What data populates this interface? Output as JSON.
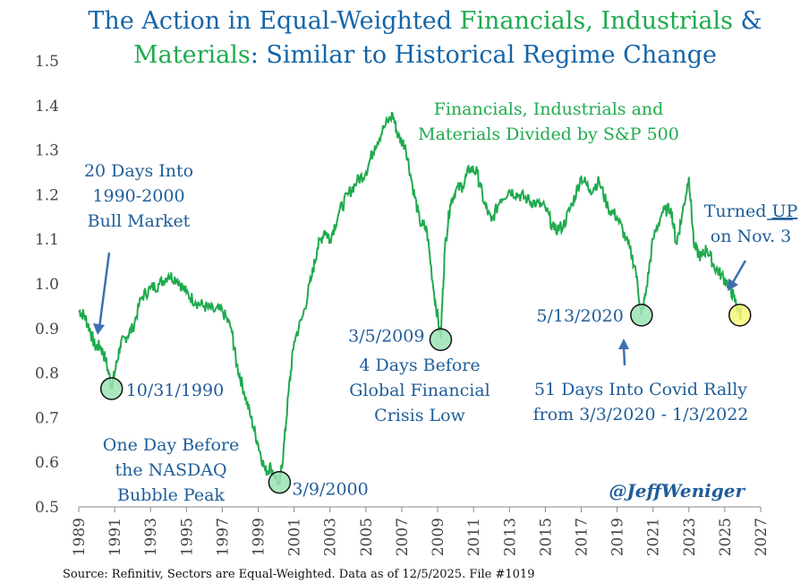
{
  "chart_data": {
    "type": "line",
    "title_parts": [
      {
        "text": "The Action in Equal-Weighted ",
        "color": "blue"
      },
      {
        "text": "Financials, Industrials",
        "color": "green"
      },
      {
        "text": " &",
        "color": "blue"
      }
    ],
    "title_parts_line2": [
      {
        "text": "Materials",
        "color": "green"
      },
      {
        "text": ": Similar to Historical Regime Change",
        "color": "blue"
      }
    ],
    "series_label": [
      "Financials, Industrials and",
      "Materials Divided by S&P 500"
    ],
    "ylim": [
      0.5,
      1.5
    ],
    "yticks": [
      "0.5",
      "0.6",
      "0.7",
      "0.8",
      "0.9",
      "1.0",
      "1.1",
      "1.2",
      "1.3",
      "1.4",
      "1.5"
    ],
    "xlim": [
      1989,
      2027
    ],
    "xticks": [
      "1989",
      "1991",
      "1993",
      "1995",
      "1997",
      "1999",
      "2001",
      "2003",
      "2005",
      "2007",
      "2009",
      "2011",
      "2013",
      "2015",
      "2017",
      "2019",
      "2021",
      "2023",
      "2025",
      "2027"
    ],
    "series": [
      {
        "name": "Financials, Industrials and Materials Divided by S&P 500",
        "color": "#1faa4e",
        "points": [
          [
            1989.0,
            0.94
          ],
          [
            1989.3,
            0.93
          ],
          [
            1989.6,
            0.9
          ],
          [
            1989.9,
            0.86
          ],
          [
            1990.2,
            0.86
          ],
          [
            1990.5,
            0.83
          ],
          [
            1990.83,
            0.77
          ],
          [
            1991.0,
            0.8
          ],
          [
            1991.3,
            0.86
          ],
          [
            1991.6,
            0.88
          ],
          [
            1992.0,
            0.9
          ],
          [
            1992.5,
            0.97
          ],
          [
            1993.0,
            0.99
          ],
          [
            1993.5,
            1.0
          ],
          [
            1994.0,
            1.02
          ],
          [
            1994.5,
            1.01
          ],
          [
            1995.0,
            0.98
          ],
          [
            1995.5,
            0.96
          ],
          [
            1996.0,
            0.95
          ],
          [
            1996.5,
            0.94
          ],
          [
            1997.0,
            0.94
          ],
          [
            1997.5,
            0.9
          ],
          [
            1997.8,
            0.82
          ],
          [
            1998.2,
            0.76
          ],
          [
            1998.6,
            0.7
          ],
          [
            1999.0,
            0.64
          ],
          [
            1999.4,
            0.58
          ],
          [
            1999.7,
            0.59
          ],
          [
            2000.19,
            0.55
          ],
          [
            2000.4,
            0.62
          ],
          [
            2000.7,
            0.76
          ],
          [
            2001.0,
            0.87
          ],
          [
            2001.5,
            0.93
          ],
          [
            2002.0,
            1.02
          ],
          [
            2002.3,
            1.08
          ],
          [
            2002.7,
            1.12
          ],
          [
            2003.0,
            1.1
          ],
          [
            2003.5,
            1.16
          ],
          [
            2004.0,
            1.2
          ],
          [
            2004.5,
            1.23
          ],
          [
            2005.0,
            1.25
          ],
          [
            2005.5,
            1.31
          ],
          [
            2006.0,
            1.35
          ],
          [
            2006.5,
            1.38
          ],
          [
            2006.8,
            1.33
          ],
          [
            2007.2,
            1.31
          ],
          [
            2007.6,
            1.22
          ],
          [
            2008.0,
            1.14
          ],
          [
            2008.4,
            1.12
          ],
          [
            2008.8,
            0.98
          ],
          [
            2009.17,
            0.88
          ],
          [
            2009.4,
            1.08
          ],
          [
            2009.7,
            1.18
          ],
          [
            2010.0,
            1.21
          ],
          [
            2010.4,
            1.22
          ],
          [
            2010.8,
            1.26
          ],
          [
            2011.2,
            1.25
          ],
          [
            2011.6,
            1.18
          ],
          [
            2012.0,
            1.14
          ],
          [
            2012.5,
            1.19
          ],
          [
            2013.0,
            1.21
          ],
          [
            2013.5,
            1.2
          ],
          [
            2014.0,
            1.19
          ],
          [
            2014.5,
            1.18
          ],
          [
            2015.0,
            1.17
          ],
          [
            2015.5,
            1.12
          ],
          [
            2016.0,
            1.13
          ],
          [
            2016.5,
            1.18
          ],
          [
            2017.0,
            1.24
          ],
          [
            2017.5,
            1.21
          ],
          [
            2018.0,
            1.23
          ],
          [
            2018.5,
            1.17
          ],
          [
            2019.0,
            1.15
          ],
          [
            2019.5,
            1.1
          ],
          [
            2020.0,
            1.04
          ],
          [
            2020.36,
            0.93
          ],
          [
            2020.6,
            0.98
          ],
          [
            2021.0,
            1.1
          ],
          [
            2021.5,
            1.16
          ],
          [
            2022.0,
            1.17
          ],
          [
            2022.3,
            1.09
          ],
          [
            2022.6,
            1.15
          ],
          [
            2023.0,
            1.24
          ],
          [
            2023.3,
            1.08
          ],
          [
            2023.7,
            1.06
          ],
          [
            2024.0,
            1.08
          ],
          [
            2024.4,
            1.04
          ],
          [
            2024.8,
            1.02
          ],
          [
            2025.2,
            1.0
          ],
          [
            2025.5,
            0.97
          ],
          [
            2025.84,
            0.93
          ],
          [
            2025.93,
            0.94
          ]
        ]
      }
    ],
    "markers": [
      {
        "x": 1990.83,
        "y": 0.765,
        "fill": "#9be3b4",
        "label": "10/31/1990"
      },
      {
        "x": 2000.19,
        "y": 0.555,
        "fill": "#9be3b4",
        "label": "3/9/2000"
      },
      {
        "x": 2009.17,
        "y": 0.875,
        "fill": "#9be3b4",
        "label": "3/5/2009"
      },
      {
        "x": 2020.36,
        "y": 0.93,
        "fill": "#9be3b4",
        "label": "5/13/2020"
      },
      {
        "x": 2025.84,
        "y": 0.93,
        "fill": "#f7f77a",
        "label": ""
      }
    ],
    "annotations": {
      "bull_1990": [
        "20 Days Into",
        "1990-2000",
        "Bull Market"
      ],
      "nasdaq": [
        "One Day Before",
        "the NASDAQ",
        "Bubble Peak"
      ],
      "gfc": [
        "4 Days Before",
        "Global Financial",
        "Crisis Low"
      ],
      "covid": [
        "51 Days Into Covid Rally",
        "from 3/3/2020 - 1/3/2022"
      ],
      "turned_prefix": "Turned ",
      "turned_up": "UP",
      "turned_line2": "on Nov. 3"
    },
    "handle": "@JeffWeniger",
    "source": "Source: Refinitiv, Sectors are Equal-Weighted. Data as of 12/5/2025. File #1019"
  }
}
